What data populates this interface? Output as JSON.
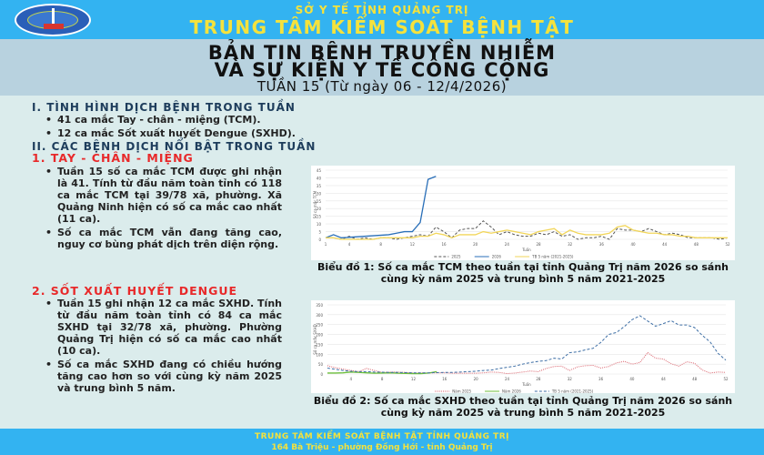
{
  "header": {
    "subtitle": "SỞ Y TẾ TỈNH QUẢNG TRỊ",
    "title": "TRUNG TÂM KIỂM SOÁT BỆNH TẬT",
    "logo": "cdc-quang-tri-logo"
  },
  "bulletin": {
    "title_line1": "BẢN TIN BỆNH TRUYỀN NHIỄM",
    "title_line2": "VÀ SỰ KIỆN Y TẾ CÔNG CỘNG",
    "week": "TUẦN 15 (Từ ngày 06 - 12/4/2026)"
  },
  "section1": {
    "heading": "I. TÌNH HÌNH DỊCH BỆNH TRONG TUẦN",
    "items": [
      "41 ca mắc Tay - chân - miệng (TCM).",
      "12 ca mắc Sốt xuất huyết Dengue (SXHD)."
    ]
  },
  "section2": {
    "heading": "II. CÁC BỆNH DỊCH NỔI BẬT TRONG TUẦN",
    "hfmd": {
      "heading": "1. TAY - CHÂN - MIỆNG",
      "items": [
        "Tuần 15 số ca mắc TCM được ghi nhận là 41. Tính từ đầu năm toàn tỉnh có 118 ca mắc TCM tại 39/78 xã, phường. Xã Quảng Ninh hiện có số ca mắc cao nhất (11 ca).",
        "Số ca mắc TCM vẫn đang tăng cao, nguy cơ bùng phát dịch trên diện rộng."
      ],
      "caption": "Biểu đồ 1: Số ca mắc TCM theo tuần tại tỉnh Quảng Trị năm 2026 so sánh cùng kỳ năm 2025 và trung bình 5 năm 2021-2025"
    },
    "dengue": {
      "heading": "2. SỐT XUẤT HUYẾT DENGUE",
      "items": [
        "Tuần 15 ghi nhận 12 ca mắc SXHD. Tính từ đầu năm toàn tỉnh có 84 ca mắc SXHD tại 32/78 xã, phường. Phường Quảng Trị hiện có số ca mắc cao nhất (10 ca).",
        "Số ca mắc SXHD đang có chiều hướng tăng cao hơn so với cùng kỳ năm 2025 và trung bình 5 năm."
      ],
      "caption": "Biểu đồ 2: Số ca mắc SXHD theo tuần tại tỉnh Quảng Trị năm 2026 so sánh cùng kỳ năm 2025 và trung bình 5 năm 2021-2025"
    }
  },
  "footer": {
    "line1": "TRUNG TÂM KIỂM SOÁT BỆNH TẬT TỈNH QUẢNG TRỊ",
    "line2": "164 Bà Triệu - phường Đồng Hới - tỉnh Quảng Trị"
  },
  "chart_data": [
    {
      "type": "line",
      "title": "Biểu đồ 1: Số ca mắc TCM theo tuần",
      "xlabel": "Tuần",
      "ylabel": "Số ca mắc TCM",
      "ylim": [
        0,
        45
      ],
      "yticks": [
        0,
        5,
        10,
        15,
        20,
        25,
        30,
        35,
        40,
        45
      ],
      "xticks": [
        1,
        4,
        8,
        12,
        16,
        20,
        24,
        28,
        32,
        36,
        40,
        44,
        48,
        52
      ],
      "legend_position": "bottom",
      "series": [
        {
          "name": "2025",
          "style": "dashed",
          "color": "#555555",
          "x": [
            1,
            2,
            3,
            4,
            5,
            6,
            7,
            8,
            9,
            10,
            11,
            12,
            13,
            14,
            15,
            16,
            17,
            18,
            19,
            20,
            21,
            22,
            23,
            24,
            25,
            26,
            27,
            28,
            29,
            30,
            31,
            32,
            33,
            34,
            35,
            36,
            37,
            38,
            39,
            40,
            41,
            42,
            43,
            44,
            45,
            46,
            47,
            48,
            49,
            50,
            51,
            52
          ],
          "values": [
            1,
            1,
            0,
            2,
            0,
            1,
            0,
            1,
            1,
            0,
            1,
            2,
            3,
            2,
            8,
            5,
            1,
            6,
            7,
            7,
            12,
            8,
            3,
            5,
            3,
            2,
            2,
            4,
            3,
            5,
            2,
            3,
            0,
            1,
            1,
            2,
            0,
            7,
            6,
            6,
            5,
            7,
            5,
            3,
            4,
            3,
            1,
            1,
            1,
            1,
            0,
            1
          ]
        },
        {
          "name": "2026",
          "style": "solid",
          "color": "#2a6fb8",
          "x": [
            1,
            2,
            3,
            9,
            10,
            11,
            12,
            13,
            14,
            15
          ],
          "values": [
            1,
            3,
            1,
            3,
            4,
            5,
            5,
            11,
            39,
            41
          ]
        },
        {
          "name": "TB 5 năm (2021-2025)",
          "style": "solid",
          "color": "#f2d65a",
          "x": [
            1,
            2,
            3,
            4,
            5,
            6,
            7,
            8,
            9,
            10,
            11,
            12,
            13,
            14,
            15,
            16,
            17,
            18,
            19,
            20,
            21,
            22,
            23,
            24,
            25,
            26,
            27,
            28,
            29,
            30,
            31,
            32,
            33,
            34,
            35,
            36,
            37,
            38,
            39,
            40,
            41,
            42,
            43,
            44,
            45,
            46,
            47,
            48,
            49,
            50,
            51,
            52
          ],
          "values": [
            1,
            1,
            0,
            0,
            0,
            0,
            0,
            1,
            1,
            1,
            1,
            1,
            2,
            2,
            4,
            3,
            1,
            3,
            3,
            3,
            5,
            4,
            5,
            6,
            5,
            4,
            3,
            5,
            6,
            7,
            3,
            6,
            4,
            3,
            3,
            3,
            4,
            8,
            9,
            6,
            5,
            4,
            4,
            3,
            3,
            2,
            2,
            1,
            1,
            1,
            1,
            1
          ]
        }
      ]
    },
    {
      "type": "line",
      "title": "Biểu đồ 2: Số ca mắc SXHD theo tuần",
      "xlabel": "Tuần",
      "ylabel": "Số ca mắc SXHD",
      "ylim": [
        0,
        350
      ],
      "yticks": [
        0,
        50,
        100,
        150,
        200,
        250,
        300,
        350
      ],
      "xticks": [
        4,
        8,
        12,
        16,
        20,
        24,
        28,
        32,
        36,
        40,
        44,
        48,
        52
      ],
      "legend_position": "bottom",
      "series": [
        {
          "name": "Năm 2025",
          "style": "dotted",
          "color": "#d9606a",
          "x": [
            1,
            2,
            3,
            4,
            5,
            6,
            7,
            8,
            9,
            10,
            11,
            12,
            13,
            14,
            15,
            16,
            17,
            18,
            19,
            20,
            21,
            22,
            23,
            24,
            25,
            26,
            27,
            28,
            29,
            30,
            31,
            32,
            33,
            34,
            35,
            36,
            37,
            38,
            39,
            40,
            41,
            42,
            43,
            44,
            45,
            46,
            47,
            48,
            49,
            50,
            51,
            52
          ],
          "values": [
            42,
            32,
            25,
            18,
            12,
            28,
            18,
            8,
            10,
            10,
            8,
            5,
            6,
            5,
            6,
            6,
            4,
            4,
            4,
            4,
            6,
            10,
            8,
            2,
            5,
            10,
            15,
            12,
            28,
            38,
            40,
            18,
            36,
            42,
            44,
            30,
            38,
            56,
            64,
            50,
            58,
            108,
            80,
            76,
            52,
            40,
            62,
            54,
            20,
            5,
            10,
            8
          ]
        },
        {
          "name": "Năm 2026",
          "style": "solid",
          "color": "#6cbf3c",
          "x": [
            1,
            2,
            3,
            4,
            5,
            6,
            7,
            8,
            9,
            10,
            11,
            12,
            13,
            14,
            15
          ],
          "values": [
            5,
            5,
            6,
            10,
            8,
            6,
            4,
            5,
            6,
            4,
            3,
            2,
            2,
            5,
            12
          ]
        },
        {
          "name": "TB 5 năm (2021-2025)",
          "style": "dashed",
          "color": "#3d6ea5",
          "x": [
            1,
            2,
            3,
            4,
            5,
            6,
            7,
            8,
            9,
            10,
            11,
            12,
            13,
            14,
            15,
            16,
            17,
            18,
            19,
            20,
            21,
            22,
            23,
            24,
            25,
            26,
            27,
            28,
            29,
            30,
            31,
            32,
            33,
            34,
            35,
            36,
            37,
            38,
            39,
            40,
            41,
            42,
            43,
            44,
            45,
            46,
            47,
            48,
            49,
            50,
            51,
            52
          ],
          "values": [
            30,
            24,
            18,
            14,
            12,
            12,
            10,
            9,
            8,
            8,
            7,
            6,
            6,
            6,
            7,
            8,
            8,
            10,
            12,
            14,
            18,
            20,
            28,
            34,
            40,
            50,
            58,
            64,
            68,
            80,
            76,
            108,
            112,
            122,
            130,
            160,
            200,
            210,
            240,
            275,
            295,
            268,
            242,
            255,
            270,
            248,
            248,
            235,
            195,
            162,
            105,
            70
          ]
        }
      ]
    }
  ]
}
